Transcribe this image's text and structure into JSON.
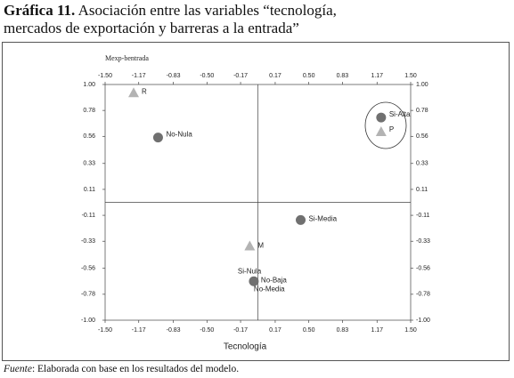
{
  "header": {
    "number": "Gráfica 11.",
    "title": "Asociación entre las variables “tecnología,",
    "title_line2": "mercados de exportación y barreras a la entrada”"
  },
  "chart_data": {
    "type": "scatter",
    "y_label": "Mexp-bentrada",
    "x_label": "Tecnología",
    "xlim": [
      -1.5,
      1.5
    ],
    "ylim": [
      -1.0,
      1.0
    ],
    "xticks": [
      {
        "value": -1.5,
        "label": "-1.50"
      },
      -1.17,
      -0.83,
      {
        "value": -0.5,
        "label": "-0.50"
      },
      -0.17,
      0.17,
      {
        "value": 0.5,
        "label": "0.50"
      },
      0.83,
      1.17,
      {
        "value": 1.5,
        "label": "1.50"
      }
    ],
    "yticks": [
      {
        "value": 1.0,
        "label": "1.00"
      },
      0.78,
      0.56,
      0.33,
      0.11,
      -0.11,
      -0.33,
      -0.56,
      -0.78,
      {
        "value": -1.0,
        "label": "-1.00"
      }
    ],
    "points": [
      {
        "labels": [
          "R"
        ],
        "x": -1.22,
        "y": 0.93,
        "marker": "triangle",
        "color": "#b3b3b3"
      },
      {
        "labels": [
          "No-Nula"
        ],
        "x": -0.98,
        "y": 0.55,
        "marker": "circle",
        "color": "#707070"
      },
      {
        "labels": [
          "Si-Alta"
        ],
        "x": 1.21,
        "y": 0.72,
        "marker": "circle",
        "color": "#707070"
      },
      {
        "labels": [
          "P"
        ],
        "x": 1.21,
        "y": 0.6,
        "marker": "triangle",
        "color": "#b3b3b3"
      },
      {
        "labels": [
          "Si-Media"
        ],
        "x": 0.42,
        "y": -0.15,
        "marker": "circle",
        "color": "#707070"
      },
      {
        "labels": [
          "M"
        ],
        "x": -0.08,
        "y": -0.37,
        "marker": "triangle",
        "color": "#b3b3b3"
      },
      {
        "labels": [
          "Si-Nula",
          "No-Baja",
          "No-Media"
        ],
        "x": -0.04,
        "y": -0.67,
        "marker": "circle",
        "color": "#707070"
      }
    ]
  },
  "footer": {
    "source_label": "Fuente",
    "source_text": ": Elaborada con base en los resultados del modelo."
  }
}
